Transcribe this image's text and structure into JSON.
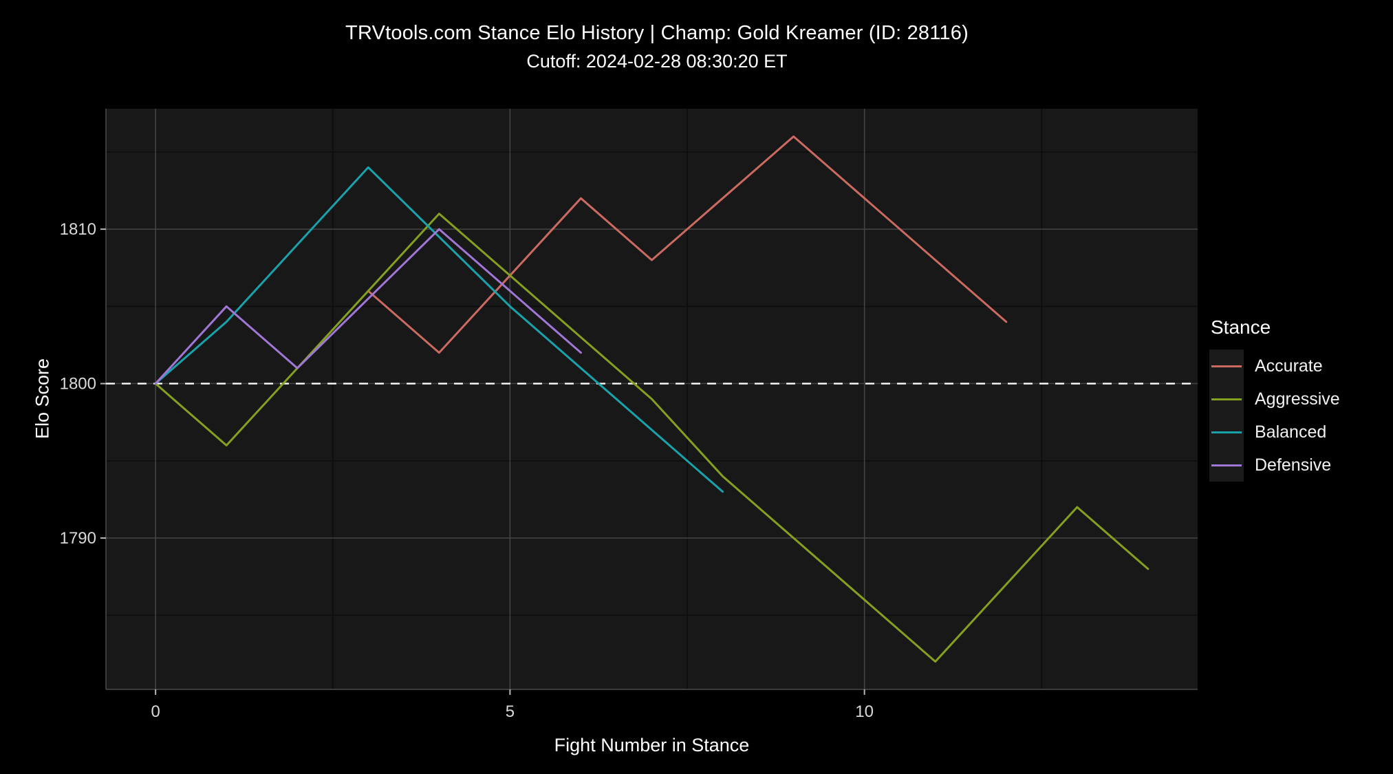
{
  "header": {
    "title": "TRVtools.com Stance Elo History  |  Champ: Gold Kreamer (ID: 28116)",
    "subtitle": "Cutoff: 2024-02-28 08:30:20 ET"
  },
  "chart_data": {
    "type": "line",
    "title": "TRVtools.com Stance Elo History  |  Champ: Gold Kreamer (ID: 28116)",
    "subtitle": "Cutoff: 2024-02-28 08:30:20 ET",
    "xlabel": "Fight Number in Stance",
    "ylabel": "Elo Score",
    "xlim": [
      -0.7,
      14.7
    ],
    "ylim": [
      1780.2,
      1817.8
    ],
    "x_ticks": [
      0,
      5,
      10
    ],
    "x_minor_ticks": [
      2.5,
      7.5,
      12.5
    ],
    "y_ticks": [
      1790,
      1800,
      1810
    ],
    "y_minor_ticks": [
      1785,
      1795,
      1805,
      1815
    ],
    "grid": "major-and-minor",
    "reference_line": {
      "y": 1800,
      "style": "dashed",
      "color": "#ffffff"
    },
    "legend": {
      "title": "Stance",
      "position": "right"
    },
    "series": [
      {
        "name": "Accurate",
        "color": "#cb6a60",
        "x": [
          3,
          4,
          5,
          6,
          7,
          8,
          9,
          10,
          11,
          12
        ],
        "values": [
          1806,
          1802,
          1807,
          1812,
          1808,
          1812,
          1816,
          1812,
          1808,
          1804
        ]
      },
      {
        "name": "Aggressive",
        "color": "#85a01e",
        "x": [
          0,
          1,
          2,
          3,
          4,
          5,
          6,
          7,
          8,
          9,
          10,
          11,
          12,
          13,
          14
        ],
        "values": [
          1800,
          1796,
          1801,
          1806,
          1811,
          1807,
          1803,
          1799,
          1794,
          1790,
          1786,
          1782,
          1787,
          1792,
          1788
        ]
      },
      {
        "name": "Balanced",
        "color": "#18a3ac",
        "x": [
          0,
          1,
          2,
          3,
          4,
          5,
          6,
          7,
          8
        ],
        "values": [
          1800,
          1804,
          1809,
          1814,
          1809.5,
          1805,
          1801,
          1797,
          1793
        ]
      },
      {
        "name": "Defensive",
        "color": "#a076d6",
        "x": [
          0,
          1,
          2,
          3,
          4,
          5,
          6
        ],
        "values": [
          1800,
          1805,
          1801,
          1805.5,
          1810,
          1806,
          1802
        ]
      }
    ]
  },
  "style": {
    "panel_bg": "#181818",
    "grid_major": "#454545",
    "grid_minor": "#0d0d0d",
    "axis_line": "#4a4a4a",
    "tick_color": "#b8b8b8",
    "tick_label_color": "#d9d9d9"
  }
}
